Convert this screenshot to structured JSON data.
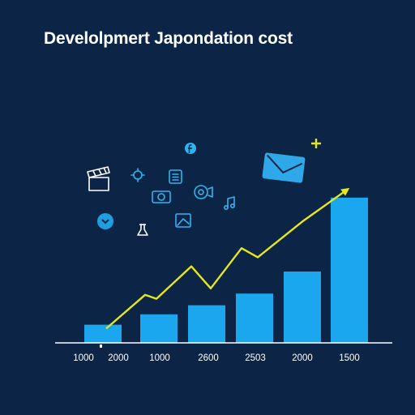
{
  "chart_data": {
    "type": "bar",
    "title": "Develolpmert Japondation cost",
    "categories": [
      "1000 2000",
      "1000",
      "2600",
      "2503",
      "2000",
      "1500"
    ],
    "tick_labels": [
      "1000",
      "2000",
      "1000",
      "2600",
      "2503",
      "2000",
      "1500"
    ],
    "values": [
      14,
      22,
      29,
      38,
      55,
      112
    ],
    "trend_line": [
      11,
      37,
      34,
      59,
      42,
      73,
      66,
      94,
      118
    ],
    "ylim": [
      0,
      120
    ],
    "xlabel": "",
    "ylabel": "",
    "grid": false,
    "colors": {
      "background": "#0c2446",
      "bar": "#1aa7ee",
      "trend": "#e6e81c",
      "text": "#ffffff",
      "axis": "#ffffff"
    }
  },
  "decorative_icons": [
    "clapperboard-icon",
    "envelope-icon",
    "facebook-icon",
    "settings-icon",
    "document-icon",
    "camera-icon",
    "gear-icon",
    "music-note-icon",
    "photo-icon",
    "chevron-down-icon",
    "flask-icon",
    "plus-icon"
  ]
}
